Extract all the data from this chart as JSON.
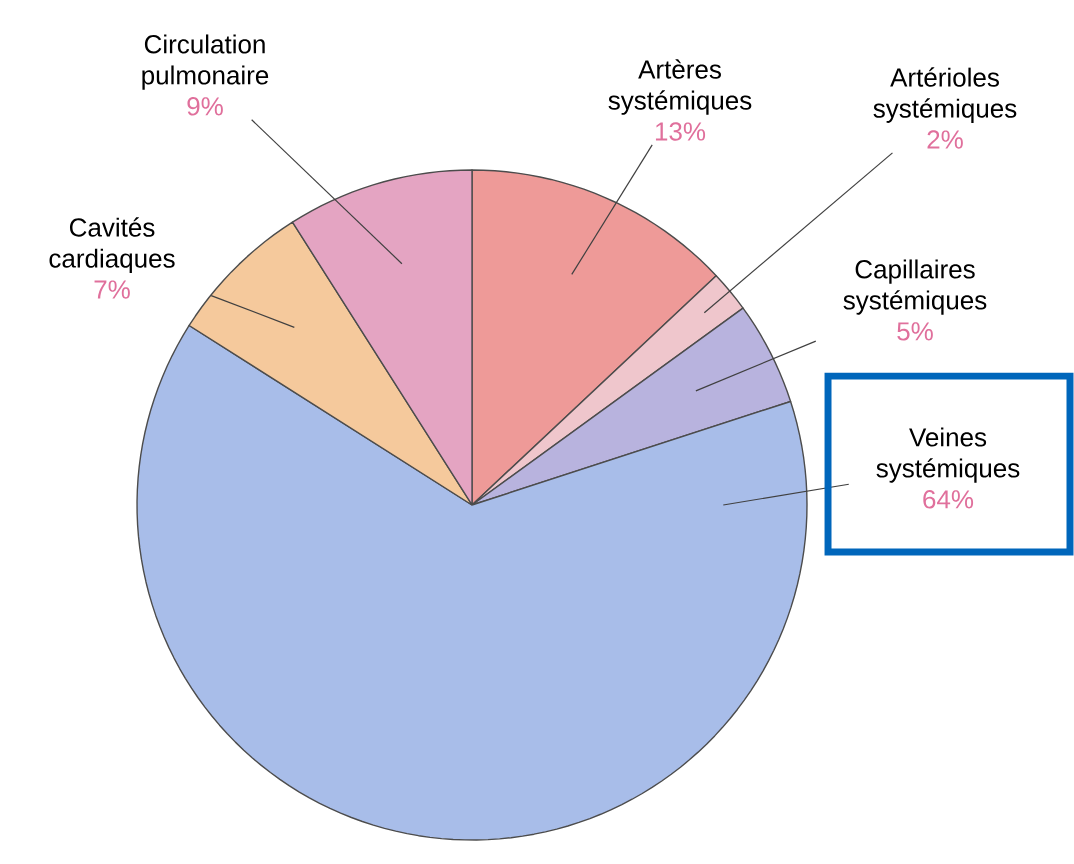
{
  "chart_data": {
    "type": "pie",
    "categories": [
      "Artères systémiques",
      "Artérioles systémiques",
      "Capillaires systémiques",
      "Veines systémiques",
      "Cavités cardiaques",
      "Circulation pulmonaire"
    ],
    "values": [
      13,
      2,
      5,
      64,
      7,
      9
    ],
    "value_labels": [
      "13%",
      "2%",
      "5%",
      "64%",
      "7%",
      "9%"
    ],
    "colors": [
      "#ee9a98",
      "#efc6cc",
      "#b8b3de",
      "#a8bde9",
      "#f5c99c",
      "#e4a4c2"
    ]
  }
}
